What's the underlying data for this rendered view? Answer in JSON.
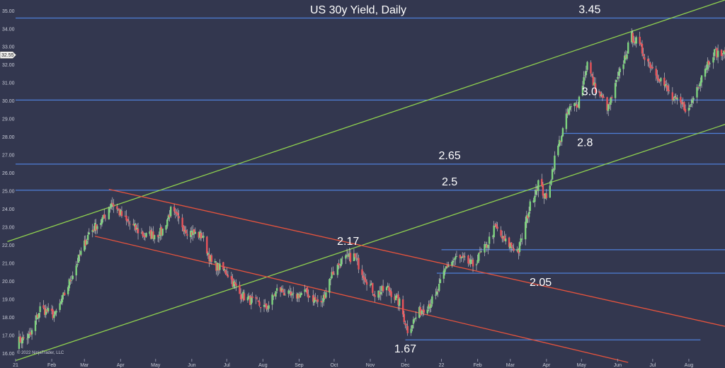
{
  "chart_data": {
    "type": "candlestick",
    "title": "US 30y Yield, Daily",
    "copyright": "© 2022 NinjaTrader, LLC",
    "y_axis": {
      "min": 15.7,
      "max": 35.6,
      "ticks": [
        "16.00",
        "17.00",
        "18.00",
        "19.00",
        "20.00",
        "21.00",
        "22.00",
        "23.00",
        "24.00",
        "25.00",
        "26.00",
        "27.00",
        "28.00",
        "29.00",
        "30.00",
        "31.00",
        "32.00",
        "33.00",
        "34.00",
        "35.00"
      ],
      "last_price_label": "32.55",
      "last_price_value": 32.55
    },
    "x_axis": {
      "start": "2021-01-01",
      "end": "2022-09-01",
      "ticks": [
        {
          "label": "21",
          "date": "2021-01-01"
        },
        {
          "label": "Feb",
          "date": "2021-02-01"
        },
        {
          "label": "Mar",
          "date": "2021-03-01"
        },
        {
          "label": "Apr",
          "date": "2021-04-01"
        },
        {
          "label": "May",
          "date": "2021-05-01"
        },
        {
          "label": "Jun",
          "date": "2021-06-01"
        },
        {
          "label": "Jul",
          "date": "2021-07-01"
        },
        {
          "label": "Aug",
          "date": "2021-08-01"
        },
        {
          "label": "Sep",
          "date": "2021-09-01"
        },
        {
          "label": "Oct",
          "date": "2021-10-01"
        },
        {
          "label": "Nov",
          "date": "2021-11-01"
        },
        {
          "label": "Dec",
          "date": "2021-12-01"
        },
        {
          "label": "22",
          "date": "2022-01-01"
        },
        {
          "label": "Feb",
          "date": "2022-02-01"
        },
        {
          "label": "Mar",
          "date": "2022-03-01"
        },
        {
          "label": "Apr",
          "date": "2022-04-01"
        },
        {
          "label": "May",
          "date": "2022-05-01"
        },
        {
          "label": "Jun",
          "date": "2022-06-01"
        },
        {
          "label": "Jul",
          "date": "2022-07-01"
        },
        {
          "label": "Aug",
          "date": "2022-08-01"
        }
      ]
    },
    "levels": [
      {
        "label": "3.45",
        "y": 34.6,
        "from": "2021-01-01",
        "to": "2022-09-01",
        "label_at": "2022-05-08"
      },
      {
        "label": "3.0",
        "y": 30.05,
        "from": "2021-01-01",
        "to": "2022-09-01",
        "label_at": "2022-05-08"
      },
      {
        "label": "2.8",
        "y": 28.2,
        "from": "2022-04-14",
        "to": "2022-09-01",
        "label_at": "2022-05-04",
        "label_below": true
      },
      {
        "label": "2.65",
        "y": 26.5,
        "from": "2021-01-01",
        "to": "2022-09-01",
        "label_at": "2022-01-08"
      },
      {
        "label": "2.5",
        "y": 25.05,
        "from": "2021-01-01",
        "to": "2022-09-01",
        "label_at": "2022-01-08"
      },
      {
        "label": "2.17",
        "y": 21.75,
        "from": "2022-01-01",
        "to": "2022-09-01",
        "label_at": "2021-10-13"
      },
      {
        "label": "2.05",
        "y": 20.45,
        "from": "2021-12-28",
        "to": "2022-09-01",
        "label_at": "2022-03-27",
        "label_below": true
      },
      {
        "label": "1.67",
        "y": 16.75,
        "from": "2021-12-01",
        "to": "2022-08-11",
        "label_at": "2021-12-01",
        "label_below": true
      }
    ],
    "channels": [
      {
        "color": "#8fd14f",
        "from": [
          "2020-12-25",
          22.2
        ],
        "to": [
          "2022-09-01",
          35.6
        ]
      },
      {
        "color": "#8fd14f",
        "from": [
          "2021-01-01",
          15.6
        ],
        "to": [
          "2022-09-01",
          28.7
        ]
      },
      {
        "color": "#e5533d",
        "from": [
          "2021-03-22",
          25.1
        ],
        "to": [
          "2022-09-01",
          17.5
        ]
      },
      {
        "color": "#e5533d",
        "from": [
          "2021-03-10",
          22.5
        ],
        "to": [
          "2022-06-10",
          15.5
        ]
      }
    ],
    "series_key_points": [
      [
        "2021-01-01",
        16.6
      ],
      [
        "2021-01-14",
        17.0
      ],
      [
        "2021-01-22",
        18.5
      ],
      [
        "2021-02-04",
        18.1
      ],
      [
        "2021-02-14",
        19.6
      ],
      [
        "2021-02-25",
        21.4
      ],
      [
        "2021-03-05",
        22.7
      ],
      [
        "2021-03-18",
        23.5
      ],
      [
        "2021-03-24",
        24.4
      ],
      [
        "2021-04-06",
        23.3
      ],
      [
        "2021-04-22",
        22.5
      ],
      [
        "2021-05-06",
        22.7
      ],
      [
        "2021-05-14",
        23.9
      ],
      [
        "2021-05-28",
        22.8
      ],
      [
        "2021-06-10",
        22.5
      ],
      [
        "2021-06-18",
        21.0
      ],
      [
        "2021-07-01",
        20.5
      ],
      [
        "2021-07-12",
        19.3
      ],
      [
        "2021-07-22",
        18.9
      ],
      [
        "2021-08-04",
        18.5
      ],
      [
        "2021-08-14",
        19.6
      ],
      [
        "2021-08-26",
        19.1
      ],
      [
        "2021-09-06",
        19.4
      ],
      [
        "2021-09-20",
        18.7
      ],
      [
        "2021-09-28",
        20.3
      ],
      [
        "2021-10-07",
        21.1
      ],
      [
        "2021-10-18",
        21.4
      ],
      [
        "2021-10-27",
        20.3
      ],
      [
        "2021-11-05",
        19.3
      ],
      [
        "2021-11-16",
        19.6
      ],
      [
        "2021-11-26",
        18.8
      ],
      [
        "2021-12-03",
        17.3
      ],
      [
        "2021-12-13",
        18.3
      ],
      [
        "2021-12-27",
        19.1
      ],
      [
        "2022-01-05",
        20.8
      ],
      [
        "2022-01-14",
        21.3
      ],
      [
        "2022-01-28",
        20.9
      ],
      [
        "2022-02-08",
        21.9
      ],
      [
        "2022-02-16",
        23.0
      ],
      [
        "2022-02-24",
        22.2
      ],
      [
        "2022-03-08",
        21.7
      ],
      [
        "2022-03-18",
        24.2
      ],
      [
        "2022-03-25",
        25.5
      ],
      [
        "2022-04-01",
        24.5
      ],
      [
        "2022-04-08",
        26.8
      ],
      [
        "2022-04-20",
        29.5
      ],
      [
        "2022-04-28",
        29.9
      ],
      [
        "2022-05-06",
        32.1
      ],
      [
        "2022-05-12",
        30.8
      ],
      [
        "2022-05-24",
        29.6
      ],
      [
        "2022-06-01",
        31.2
      ],
      [
        "2022-06-13",
        33.6
      ],
      [
        "2022-06-17",
        33.3
      ],
      [
        "2022-06-28",
        32.1
      ],
      [
        "2022-07-08",
        31.2
      ],
      [
        "2022-07-18",
        30.1
      ],
      [
        "2022-08-01",
        29.5
      ],
      [
        "2022-08-12",
        31.5
      ],
      [
        "2022-08-22",
        32.7
      ],
      [
        "2022-09-01",
        32.55
      ]
    ],
    "colors": {
      "background": "#33374f",
      "up_candle": "#7ed37e",
      "down_candle": "#e8545a",
      "level_line": "#4f7fd8",
      "channel_green": "#8fd14f",
      "channel_red": "#e5533d"
    }
  }
}
